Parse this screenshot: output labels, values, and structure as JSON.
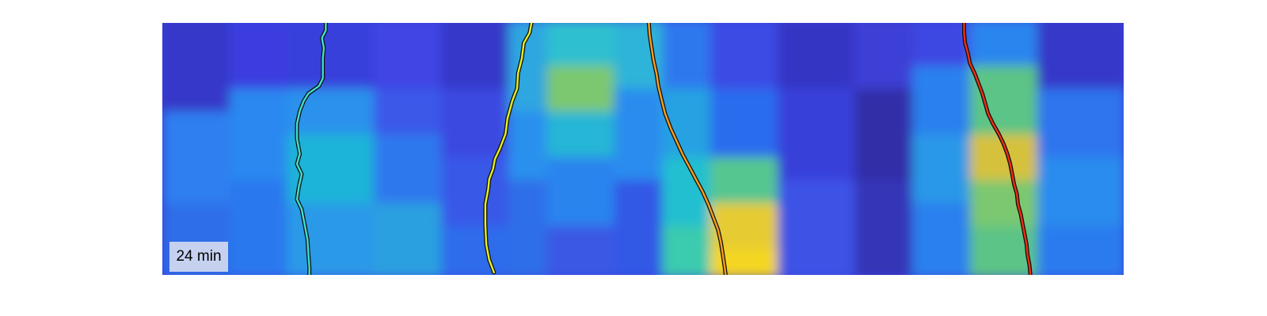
{
  "time_label": "24 min",
  "chart_data": {
    "type": "heatmap",
    "colormap": "parula",
    "axes_visible": false,
    "legend": "none",
    "grid": false,
    "annotation": "24 min",
    "tracks": [
      {
        "color": "#40e0d0",
        "edge_color": "#111111",
        "points": [
          [
            0.17,
            0
          ],
          [
            0.17,
            0.03
          ],
          [
            0.166,
            0.06
          ],
          [
            0.168,
            0.1
          ],
          [
            0.167,
            0.14
          ],
          [
            0.167,
            0.18
          ],
          [
            0.167,
            0.22
          ],
          [
            0.163,
            0.25
          ],
          [
            0.152,
            0.28
          ],
          [
            0.147,
            0.31
          ],
          [
            0.143,
            0.35
          ],
          [
            0.14,
            0.4
          ],
          [
            0.14,
            0.46
          ],
          [
            0.143,
            0.52
          ],
          [
            0.14,
            0.56
          ],
          [
            0.145,
            0.6
          ],
          [
            0.142,
            0.65
          ],
          [
            0.14,
            0.7
          ],
          [
            0.145,
            0.74
          ],
          [
            0.148,
            0.8
          ],
          [
            0.151,
            0.86
          ],
          [
            0.152,
            0.92
          ],
          [
            0.153,
            0.97
          ],
          [
            0.153,
            1.0
          ]
        ]
      },
      {
        "color": "#e8f020",
        "edge_color": "#111111",
        "points": [
          [
            0.384,
            0
          ],
          [
            0.382,
            0.04
          ],
          [
            0.376,
            0.08
          ],
          [
            0.374,
            0.14
          ],
          [
            0.37,
            0.2
          ],
          [
            0.369,
            0.26
          ],
          [
            0.364,
            0.31
          ],
          [
            0.359,
            0.38
          ],
          [
            0.357,
            0.44
          ],
          [
            0.351,
            0.5
          ],
          [
            0.346,
            0.54
          ],
          [
            0.344,
            0.58
          ],
          [
            0.34,
            0.62
          ],
          [
            0.339,
            0.66
          ],
          [
            0.336,
            0.72
          ],
          [
            0.336,
            0.8
          ],
          [
            0.337,
            0.88
          ],
          [
            0.34,
            0.94
          ],
          [
            0.345,
            0.99
          ]
        ]
      },
      {
        "color": "#ff9e1a",
        "edge_color": "#111111",
        "points": [
          [
            0.506,
            0
          ],
          [
            0.507,
            0.05
          ],
          [
            0.509,
            0.1
          ],
          [
            0.511,
            0.15
          ],
          [
            0.514,
            0.2
          ],
          [
            0.516,
            0.25
          ],
          [
            0.519,
            0.3
          ],
          [
            0.523,
            0.36
          ],
          [
            0.529,
            0.42
          ],
          [
            0.535,
            0.47
          ],
          [
            0.541,
            0.52
          ],
          [
            0.548,
            0.57
          ],
          [
            0.555,
            0.62
          ],
          [
            0.562,
            0.67
          ],
          [
            0.568,
            0.72
          ],
          [
            0.573,
            0.77
          ],
          [
            0.578,
            0.82
          ],
          [
            0.581,
            0.87
          ],
          [
            0.583,
            0.92
          ],
          [
            0.585,
            0.97
          ],
          [
            0.586,
            1.0
          ]
        ]
      },
      {
        "color": "#ee2e12",
        "edge_color": "#111111",
        "points": [
          [
            0.834,
            0
          ],
          [
            0.834,
            0.04
          ],
          [
            0.835,
            0.08
          ],
          [
            0.838,
            0.12
          ],
          [
            0.84,
            0.16
          ],
          [
            0.845,
            0.2
          ],
          [
            0.849,
            0.24
          ],
          [
            0.853,
            0.28
          ],
          [
            0.856,
            0.32
          ],
          [
            0.859,
            0.36
          ],
          [
            0.864,
            0.4
          ],
          [
            0.87,
            0.44
          ],
          [
            0.875,
            0.48
          ],
          [
            0.879,
            0.52
          ],
          [
            0.882,
            0.56
          ],
          [
            0.884,
            0.6
          ],
          [
            0.886,
            0.64
          ],
          [
            0.889,
            0.68
          ],
          [
            0.89,
            0.72
          ],
          [
            0.893,
            0.76
          ],
          [
            0.895,
            0.8
          ],
          [
            0.897,
            0.84
          ],
          [
            0.899,
            0.88
          ],
          [
            0.9,
            0.92
          ],
          [
            0.902,
            0.96
          ],
          [
            0.903,
            1.0
          ]
        ]
      }
    ]
  }
}
